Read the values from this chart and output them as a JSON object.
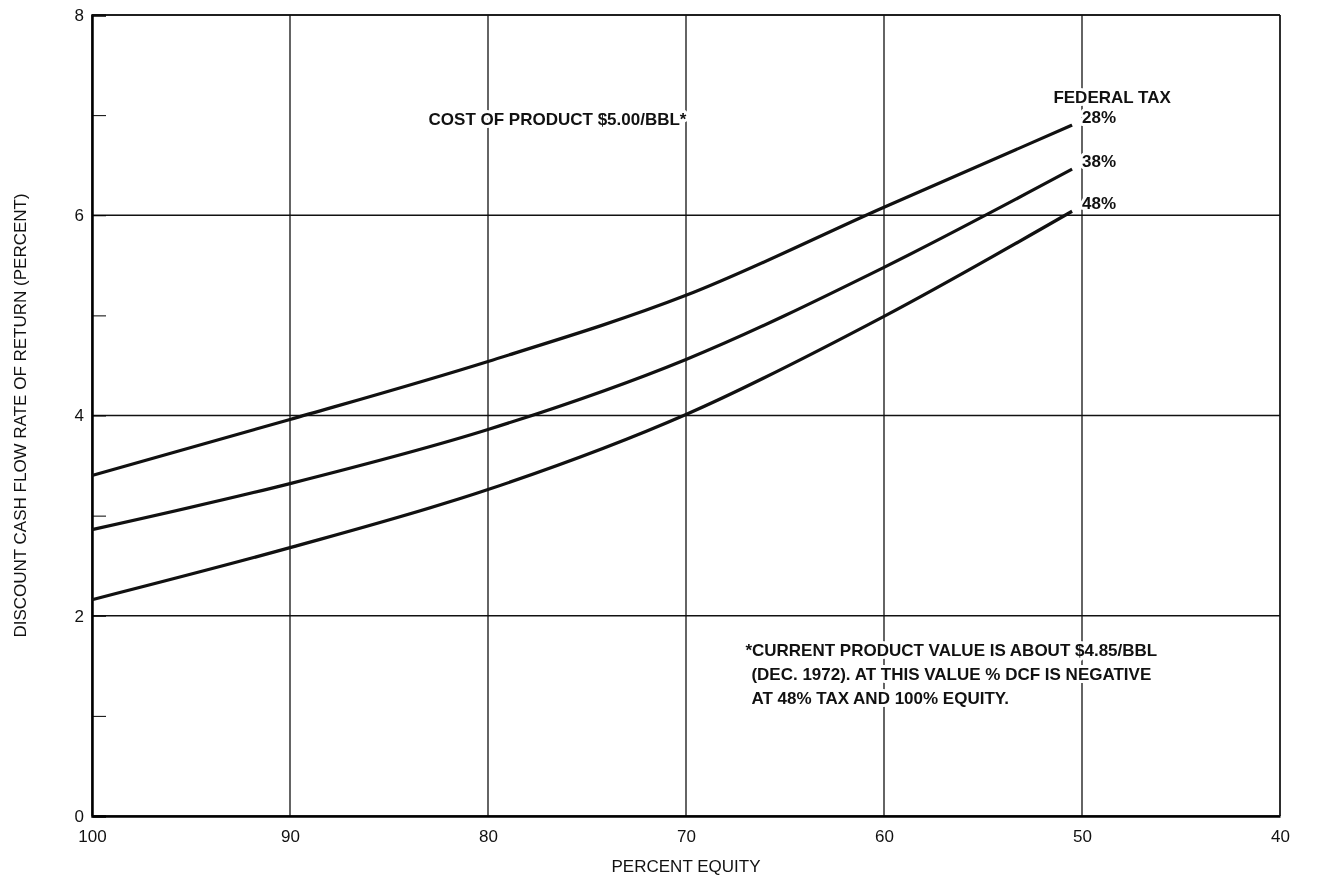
{
  "chart_data": {
    "type": "line",
    "xlabel": "PERCENT EQUITY",
    "ylabel": "DISCOUNT CASH FLOW RATE OF RETURN (PERCENT)",
    "legend_title": "FEDERAL TAX",
    "xlim": [
      100,
      40
    ],
    "xticks": [
      100,
      90,
      80,
      70,
      60,
      50,
      40
    ],
    "ylim": [
      0,
      8
    ],
    "yticks": [
      0,
      {
        "value": 1,
        "label": null
      },
      2,
      {
        "value": 3,
        "label": null
      },
      4,
      {
        "value": 5,
        "label": null
      },
      6,
      {
        "value": 7,
        "label": null
      },
      8
    ],
    "grid": true,
    "legend": false,
    "line_style": "solid",
    "marker": "none",
    "annotations": [
      "COST OF PRODUCT $5.00/BBL*",
      "*CURRENT PRODUCT VALUE IS ABOUT $4.85/BBL\n(DEC. 1972).  AT THIS VALUE % DCF IS NEGATIVE\nAT 48% TAX AND 100% EQUITY."
    ],
    "x": [
      100,
      90,
      80,
      70,
      60,
      50.5
    ],
    "series": [
      {
        "name": "28%",
        "color": "#111111",
        "values": [
          3.4,
          3.96,
          4.54,
          5.2,
          6.08,
          6.9
        ]
      },
      {
        "name": "38%",
        "color": "#111111",
        "values": [
          2.86,
          3.32,
          3.86,
          4.56,
          5.48,
          6.46
        ]
      },
      {
        "name": "48%",
        "color": "#111111",
        "values": [
          2.16,
          2.68,
          3.26,
          4.01,
          4.99,
          6.04
        ]
      }
    ]
  }
}
